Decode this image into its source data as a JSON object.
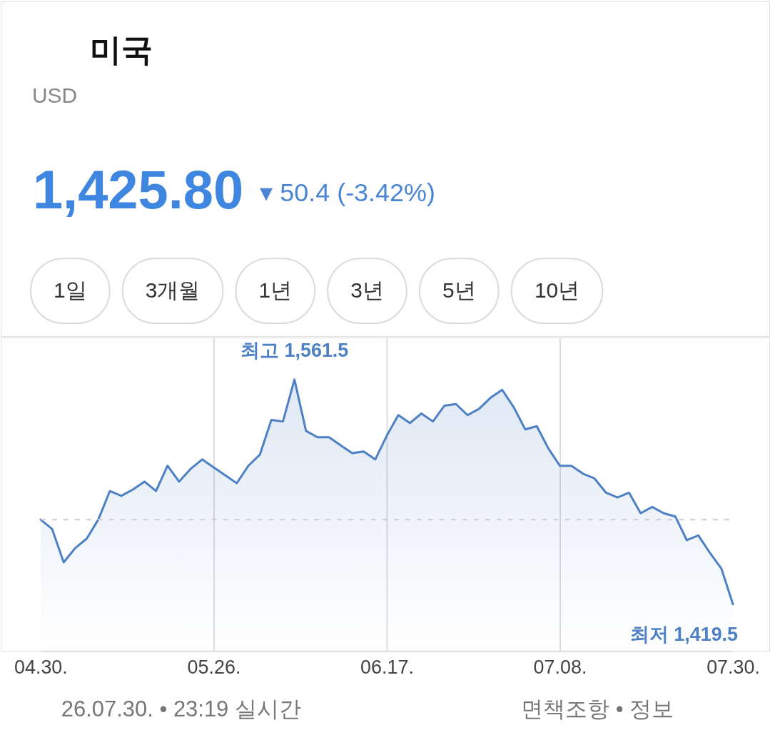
{
  "chart_data": {
    "type": "area",
    "title": "미국",
    "subtitle": "USD",
    "categories": [
      "04.30.",
      null,
      null,
      null,
      null,
      null,
      null,
      null,
      null,
      null,
      null,
      null,
      null,
      null,
      null,
      "05.26.",
      null,
      null,
      null,
      null,
      null,
      null,
      null,
      null,
      null,
      null,
      null,
      null,
      null,
      null,
      "06.17.",
      null,
      null,
      null,
      null,
      null,
      null,
      null,
      null,
      null,
      null,
      null,
      null,
      null,
      null,
      "07.08.",
      null,
      null,
      null,
      null,
      null,
      null,
      null,
      null,
      null,
      null,
      null,
      null,
      null,
      null,
      "07.30."
    ],
    "series": [
      {
        "color": "#4d80c4",
        "values": [
          1473,
          1467,
          1446,
          1455,
          1461,
          1473,
          1491,
          1488,
          1492,
          1497,
          1491,
          1507,
          1497,
          1505,
          1511,
          1506,
          1501,
          1496,
          1507,
          1514,
          1536,
          1535,
          1561.5,
          1529,
          1525,
          1525,
          1520,
          1515,
          1516,
          1511,
          1526,
          1539,
          1534,
          1540,
          1535,
          1545,
          1546,
          1539,
          1543,
          1550,
          1555,
          1544,
          1530,
          1532,
          1518,
          1507,
          1507,
          1502,
          1499,
          1490,
          1487,
          1490,
          1477,
          1481,
          1477,
          1475,
          1460,
          1463,
          1452,
          1442,
          1419.5
        ],
        "value_labels": [
          null,
          null,
          null,
          null,
          null,
          null,
          null,
          null,
          null,
          null,
          null,
          null,
          null,
          null,
          null,
          null,
          null,
          null,
          null,
          null,
          null,
          null,
          "최고 1,561.5",
          null,
          null,
          null,
          null,
          null,
          null,
          null,
          null,
          null,
          null,
          null,
          null,
          null,
          null,
          null,
          null,
          null,
          null,
          null,
          null,
          null,
          null,
          null,
          null,
          null,
          null,
          null,
          null,
          null,
          null,
          null,
          null,
          null,
          null,
          null,
          null,
          null,
          "최저 1,419.5"
        ]
      }
    ],
    "ylim": [
      1390,
      1588
    ],
    "ref_lines": [
      {
        "axis": "y",
        "value": 1473,
        "color": "#cccccc",
        "line_style": "dashed"
      }
    ],
    "annotations": [
      "1,425.80",
      "▾ 50.4 (-3.42%)",
      "1일",
      "3개월",
      "1년",
      "3년",
      "5년",
      "10년",
      "26.07.30. • 23:19 실시간",
      "면책조항 • 정보"
    ],
    "grid": "x",
    "tick_labels": "x"
  }
}
